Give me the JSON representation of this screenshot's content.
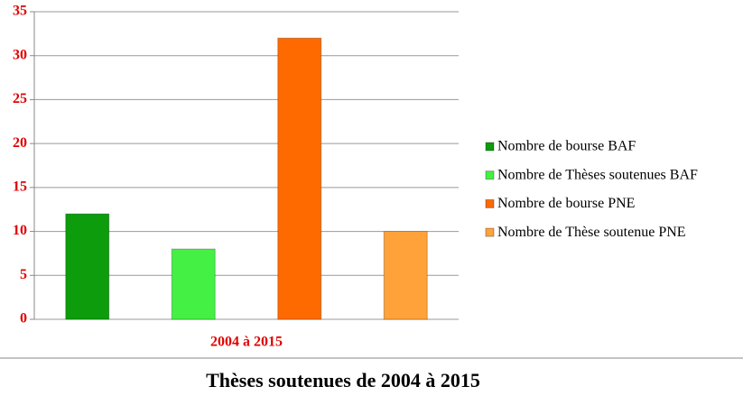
{
  "chart_data": {
    "type": "bar",
    "title": "Thèses soutenues de 2004 à 2015",
    "categories": [
      "2004 à 2015"
    ],
    "series": [
      {
        "name": "Nombre de bourse BAF",
        "color": "#0c9c0c",
        "values": [
          12
        ]
      },
      {
        "name": "Nombre de Thèses soutenues BAF",
        "color": "#44f044",
        "values": [
          8
        ]
      },
      {
        "name": "Nombre de bourse PNE",
        "color": "#ff6a00",
        "values": [
          32
        ]
      },
      {
        "name": "Nombre de Thèse soutenue PNE",
        "color": "#ffa23a",
        "values": [
          10
        ]
      }
    ],
    "ylim": [
      0,
      35
    ],
    "yticks": [
      0,
      5,
      10,
      15,
      20,
      25,
      30,
      35
    ],
    "grid": true,
    "legend": "right"
  }
}
